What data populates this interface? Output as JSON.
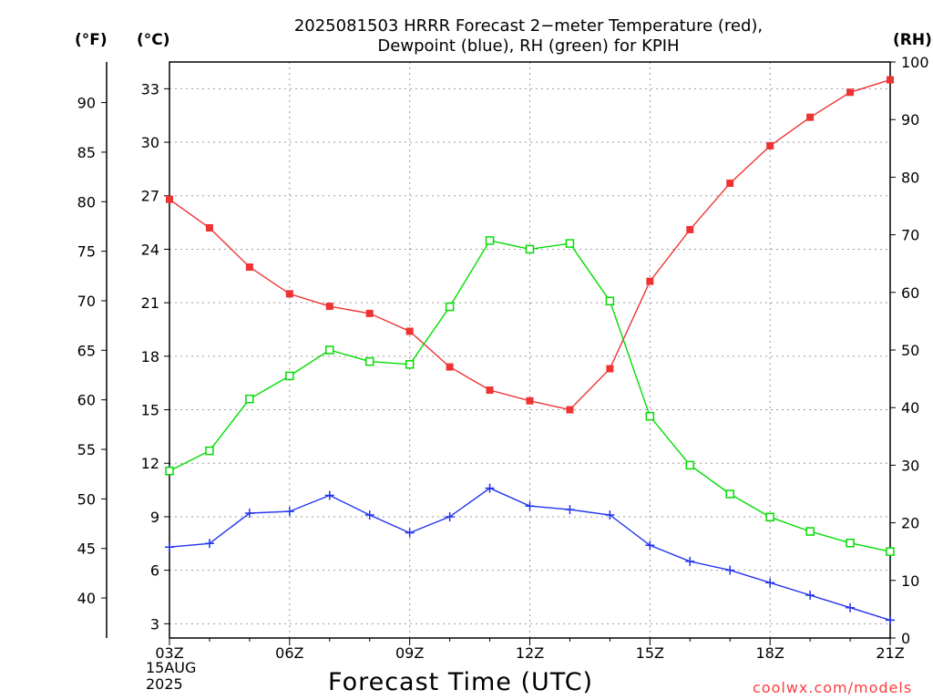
{
  "header": {
    "title_line1": "2025081503 HRRR Forecast 2−meter Temperature (red),",
    "title_line2": "Dewpoint (blue), RH (green) for KPIH",
    "unit_f": "(°F)",
    "unit_c": "(°C)",
    "unit_rh": "(RH)"
  },
  "footer": {
    "xlabel": "Forecast Time (UTC)",
    "credit": "coolwx.com/models",
    "date_day": "15AUG",
    "date_year": "2025"
  },
  "chart_data": {
    "type": "line",
    "x": [
      "03Z",
      "04Z",
      "05Z",
      "06Z",
      "07Z",
      "08Z",
      "09Z",
      "10Z",
      "11Z",
      "12Z",
      "13Z",
      "14Z",
      "15Z",
      "16Z",
      "17Z",
      "18Z",
      "19Z",
      "20Z",
      "21Z"
    ],
    "x_ticks": [
      "03Z",
      "06Z",
      "09Z",
      "12Z",
      "15Z",
      "18Z",
      "21Z"
    ],
    "y_celsius": {
      "ticks": [
        3,
        6,
        9,
        12,
        15,
        18,
        21,
        24,
        27,
        30,
        33
      ],
      "range": [
        2.2,
        34.5
      ]
    },
    "y_fahrenheit": {
      "ticks": [
        40,
        45,
        50,
        55,
        60,
        65,
        70,
        75,
        80,
        85,
        90
      ]
    },
    "y_rh": {
      "ticks": [
        0,
        10,
        20,
        30,
        40,
        50,
        60,
        70,
        80,
        90,
        100
      ],
      "range": [
        0,
        100
      ]
    },
    "grid": true,
    "series": [
      {
        "axis": "celsius",
        "color": "#ee3333",
        "marker": "filled-square",
        "values": [
          26.8,
          25.2,
          23.0,
          21.5,
          20.8,
          20.4,
          19.4,
          17.4,
          16.1,
          15.5,
          15.0,
          17.3,
          22.2,
          25.1,
          27.7,
          29.8,
          31.4,
          32.8,
          33.5
        ]
      },
      {
        "axis": "celsius",
        "color": "#2233ee",
        "marker": "plus",
        "values": [
          7.3,
          7.5,
          9.2,
          9.3,
          10.2,
          9.1,
          8.1,
          9.0,
          10.6,
          9.6,
          9.4,
          9.1,
          7.4,
          6.5,
          6.0,
          5.3,
          4.6,
          3.9,
          3.2
        ]
      },
      {
        "axis": "rh",
        "color": "#00dd00",
        "marker": "open-square",
        "values": [
          29.0,
          32.5,
          41.5,
          45.5,
          50.0,
          48.0,
          47.5,
          57.5,
          69.0,
          67.5,
          68.5,
          58.5,
          38.5,
          30.0,
          25.0,
          21.0,
          18.5,
          16.5,
          15.0
        ]
      }
    ]
  }
}
